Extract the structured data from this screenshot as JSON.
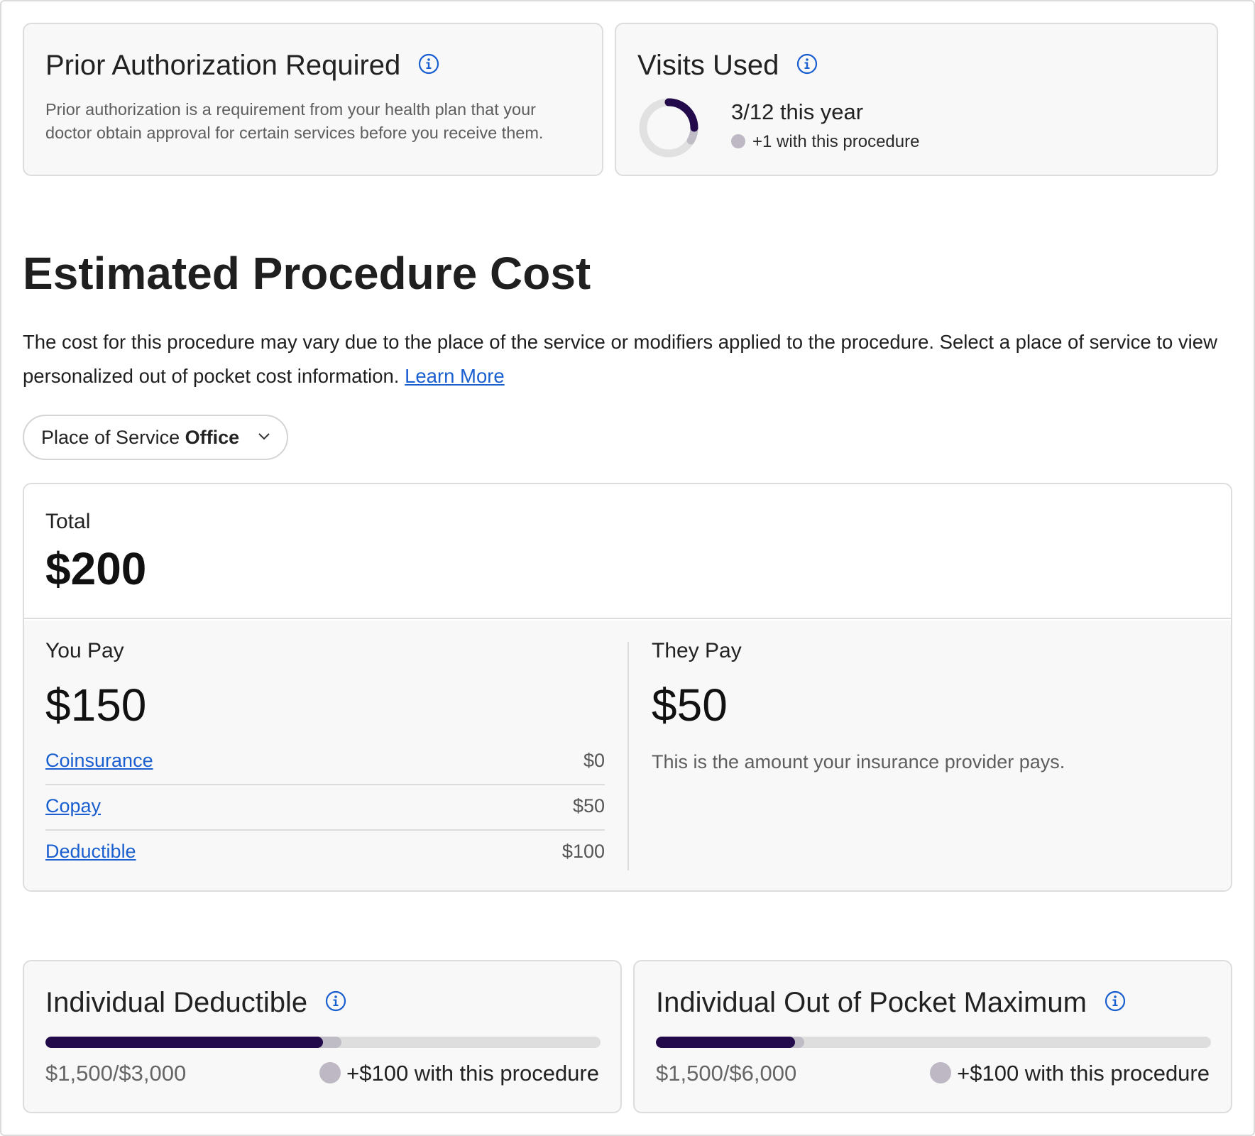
{
  "prior_auth": {
    "title": "Prior Authorization Required",
    "description": "Prior authorization is a requirement from your health plan that your doctor obtain approval for certain services before you receive them."
  },
  "visits": {
    "title": "Visits Used",
    "used": 3,
    "total": 12,
    "count_text": "3/12 this year",
    "projected_text": "+1 with this procedure"
  },
  "section": {
    "title": "Estimated Procedure Cost",
    "description": "The cost for this procedure may vary due to the place of the service or modifiers applied to the procedure. Select a place of service to view personalized out of pocket cost information.",
    "learn_more": "Learn More"
  },
  "place_select": {
    "label": "Place of Service",
    "value": "Office"
  },
  "cost": {
    "total_label": "Total",
    "total_value": "$200",
    "you_pay_label": "You Pay",
    "you_pay_value": "$150",
    "they_pay_label": "They Pay",
    "they_pay_value": "$50",
    "they_pay_desc": "This is the amount your insurance provider pays.",
    "breakdown": [
      {
        "label": "Coinsurance",
        "amount": "$0"
      },
      {
        "label": "Copay",
        "amount": "$50"
      },
      {
        "label": "Deductible",
        "amount": "$100"
      }
    ]
  },
  "deductible": {
    "title": "Individual Deductible",
    "amount_text": "$1,500/$3,000",
    "projected_text": "+$100 with this procedure",
    "used": 1500,
    "projected": 1600,
    "max": 3000
  },
  "oop": {
    "title": "Individual Out of Pocket Maximum",
    "amount_text": "$1,500/$6,000",
    "projected_text": "+$100 with this procedure",
    "used": 1500,
    "projected": 1600,
    "max": 6000
  },
  "colors": {
    "accent_dark": "#230a4a",
    "projected": "#c0bcc6",
    "link": "#1a5fd0"
  },
  "icons": {
    "info": "info-icon",
    "chevron": "chevron-down-icon"
  }
}
